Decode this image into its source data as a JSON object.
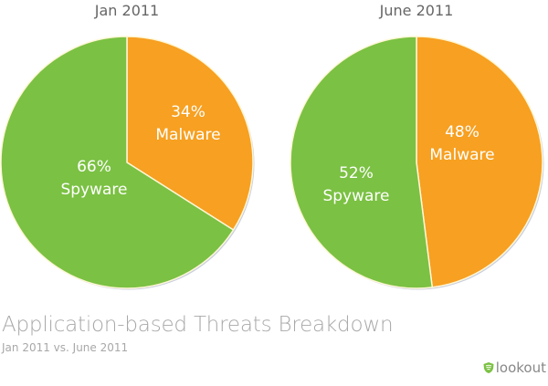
{
  "chart_data": [
    {
      "type": "pie",
      "title": "Jan 2011",
      "slices": [
        {
          "label": "Malware",
          "value": 34,
          "value_text": "34%",
          "color": "#f7a021"
        },
        {
          "label": "Spyware",
          "value": 66,
          "value_text": "66%",
          "color": "#7bc143"
        }
      ]
    },
    {
      "type": "pie",
      "title": "June 2011",
      "slices": [
        {
          "label": "Malware",
          "value": 48,
          "value_text": "48%",
          "color": "#f7a021"
        },
        {
          "label": "Spyware",
          "value": 52,
          "value_text": "52%",
          "color": "#7bc143"
        }
      ]
    }
  ],
  "footer": {
    "title": "Application-based Threats Breakdown",
    "subtitle": "Jan 2011 vs. June 2011",
    "logo_text": "lookout",
    "logo_icon": "shield-icon"
  }
}
